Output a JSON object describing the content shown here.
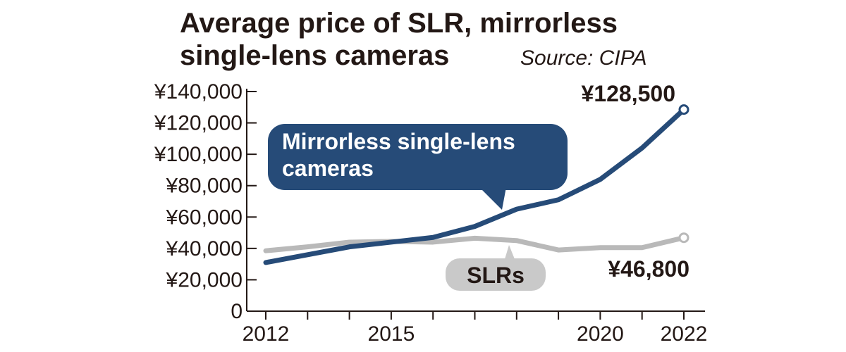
{
  "chart_data": {
    "type": "line",
    "title_line1": "Average price of SLR, mirrorless",
    "title_line2": "single-lens cameras",
    "source": "Source: CIPA",
    "x": [
      2012,
      2013,
      2014,
      2015,
      2016,
      2017,
      2018,
      2019,
      2020,
      2021,
      2022
    ],
    "x_tick_labels": [
      "2012",
      "2015",
      "2020",
      "2022"
    ],
    "x_tick_values": [
      2012,
      2015,
      2020,
      2022
    ],
    "y_ticks": [
      0,
      20000,
      40000,
      60000,
      80000,
      100000,
      120000,
      140000
    ],
    "y_tick_labels": [
      "0",
      "¥20,000",
      "¥40,000",
      "¥60,000",
      "¥80,000",
      "¥100,000",
      "¥120,000",
      "¥140,000"
    ],
    "ylim": [
      0,
      140000
    ],
    "grid": false,
    "series": [
      {
        "name": "Mirrorless single-lens cameras",
        "name_line1": "Mirrorless single-lens",
        "name_line2": "cameras",
        "color": "#264B78",
        "values": [
          31000,
          36000,
          41000,
          44000,
          47000,
          54000,
          65000,
          71000,
          84000,
          104000,
          128500
        ],
        "end_label": "¥128,500"
      },
      {
        "name": "SLRs",
        "color": "#B9B9B9",
        "values": [
          38500,
          41000,
          44000,
          44500,
          44000,
          46500,
          45000,
          39000,
          40500,
          40500,
          46800
        ],
        "end_label": "¥46,800"
      }
    ]
  }
}
